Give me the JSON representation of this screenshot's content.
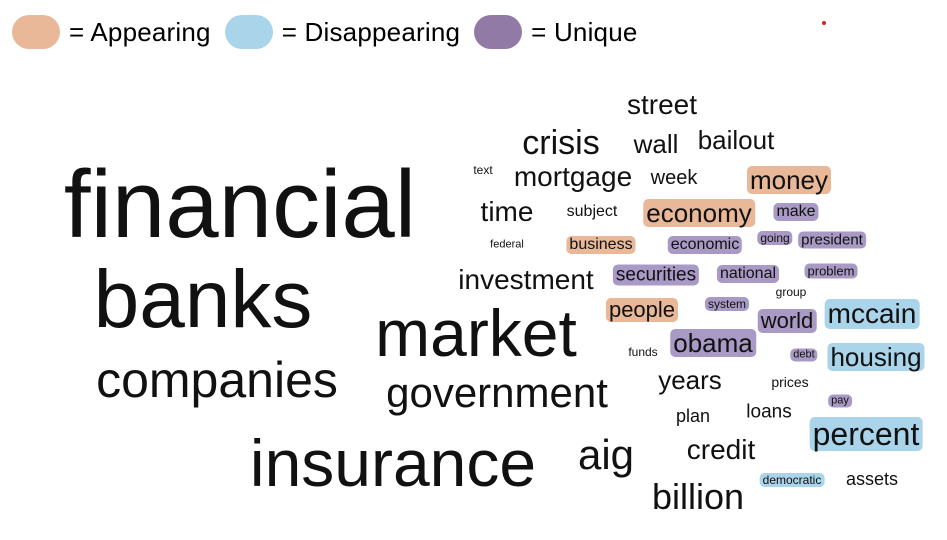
{
  "legend": {
    "items": [
      {
        "label": "= Appearing",
        "color": "#e8b898",
        "icon": "appearing-swatch"
      },
      {
        "label": "= Disappearing",
        "color": "#a9d4ea",
        "icon": "disappearing-swatch"
      },
      {
        "label": "= Unique",
        "color": "#927aa6",
        "icon": "unique-swatch"
      }
    ]
  },
  "marker": {
    "color": "#e02020",
    "icon": "red-dot"
  },
  "colors": {
    "none": "transparent",
    "appearing": "#e8b898",
    "disappearing": "#a9d4ea",
    "unique": "#a89ac4"
  },
  "words": [
    {
      "text": "financial",
      "category": "none"
    },
    {
      "text": "banks",
      "category": "none"
    },
    {
      "text": "market",
      "category": "none"
    },
    {
      "text": "companies",
      "category": "none"
    },
    {
      "text": "insurance",
      "category": "none"
    },
    {
      "text": "government",
      "category": "none"
    },
    {
      "text": "street",
      "category": "none"
    },
    {
      "text": "crisis",
      "category": "none"
    },
    {
      "text": "wall",
      "category": "none"
    },
    {
      "text": "bailout",
      "category": "none"
    },
    {
      "text": "text",
      "category": "none"
    },
    {
      "text": "mortgage",
      "category": "none"
    },
    {
      "text": "week",
      "category": "none"
    },
    {
      "text": "money",
      "category": "appearing"
    },
    {
      "text": "time",
      "category": "none"
    },
    {
      "text": "subject",
      "category": "none"
    },
    {
      "text": "economy",
      "category": "appearing"
    },
    {
      "text": "make",
      "category": "unique"
    },
    {
      "text": "federal",
      "category": "none"
    },
    {
      "text": "business",
      "category": "appearing"
    },
    {
      "text": "economic",
      "category": "unique"
    },
    {
      "text": "going",
      "category": "unique"
    },
    {
      "text": "president",
      "category": "unique"
    },
    {
      "text": "investment",
      "category": "none"
    },
    {
      "text": "securities",
      "category": "unique"
    },
    {
      "text": "national",
      "category": "unique"
    },
    {
      "text": "problem",
      "category": "unique"
    },
    {
      "text": "group",
      "category": "none"
    },
    {
      "text": "system",
      "category": "unique"
    },
    {
      "text": "people",
      "category": "appearing"
    },
    {
      "text": "world",
      "category": "unique"
    },
    {
      "text": "mccain",
      "category": "disappearing"
    },
    {
      "text": "obama",
      "category": "unique"
    },
    {
      "text": "funds",
      "category": "none"
    },
    {
      "text": "debt",
      "category": "unique"
    },
    {
      "text": "housing",
      "category": "disappearing"
    },
    {
      "text": "years",
      "category": "none"
    },
    {
      "text": "prices",
      "category": "none"
    },
    {
      "text": "pay",
      "category": "unique"
    },
    {
      "text": "plan",
      "category": "none"
    },
    {
      "text": "loans",
      "category": "none"
    },
    {
      "text": "percent",
      "category": "disappearing"
    },
    {
      "text": "aig",
      "category": "none"
    },
    {
      "text": "credit",
      "category": "none"
    },
    {
      "text": "democratic",
      "category": "disappearing"
    },
    {
      "text": "assets",
      "category": "none"
    },
    {
      "text": "billion",
      "category": "none"
    }
  ]
}
